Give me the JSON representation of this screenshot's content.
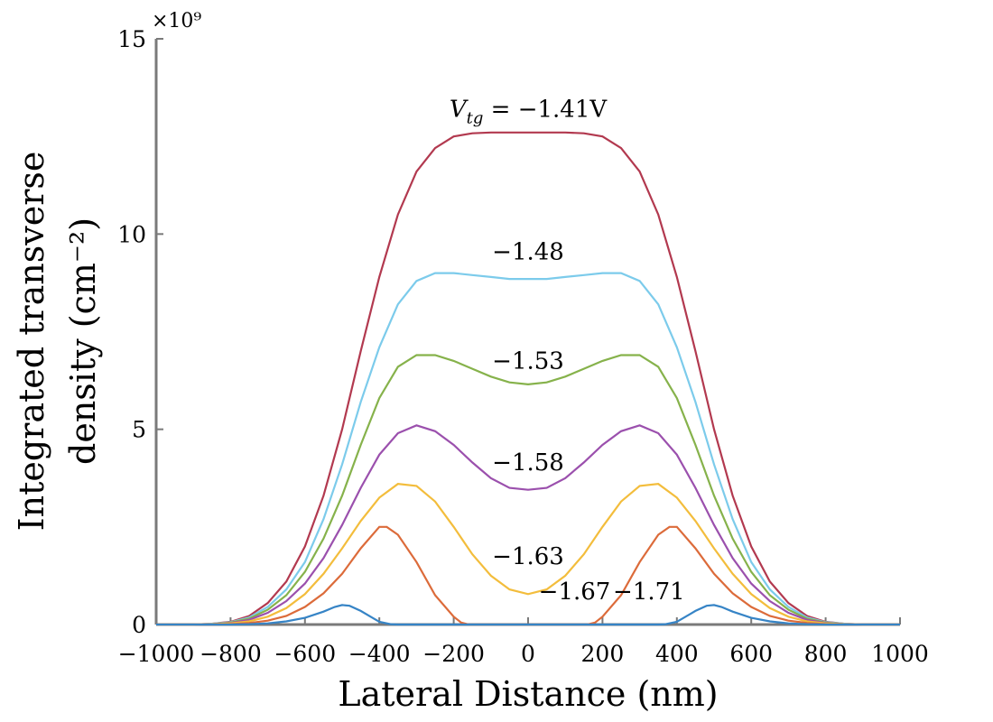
{
  "chart_data": {
    "type": "line",
    "title": "",
    "xlabel": "Lateral Distance (nm)",
    "ylabel_line1": "Integrated transverse",
    "ylabel_line2": "density (cm⁻²)",
    "y_multiplier": "×10⁹",
    "xlim": [
      -1000,
      1000
    ],
    "ylim": [
      0,
      15
    ],
    "x_ticks": [
      -1000,
      -800,
      -600,
      -400,
      -200,
      0,
      200,
      400,
      600,
      800,
      1000
    ],
    "x_tick_labels": [
      "−1000",
      "−800",
      "−600",
      "−400",
      "−200",
      "0",
      "200",
      "400",
      "600",
      "800",
      "1000"
    ],
    "y_ticks": [
      0,
      5,
      10,
      15
    ],
    "y_tick_labels": [
      "0",
      "5",
      "10",
      "15"
    ],
    "grid": false,
    "legend": "none",
    "series": [
      {
        "name": "V_tg = −1.41V",
        "color": "#b2394f",
        "points": [
          [
            -1000,
            0
          ],
          [
            -900,
            0
          ],
          [
            -850,
            0.02
          ],
          [
            -800,
            0.07
          ],
          [
            -750,
            0.22
          ],
          [
            -700,
            0.55
          ],
          [
            -650,
            1.1
          ],
          [
            -600,
            2.0
          ],
          [
            -550,
            3.3
          ],
          [
            -500,
            5.0
          ],
          [
            -450,
            7.0
          ],
          [
            -400,
            8.9
          ],
          [
            -350,
            10.5
          ],
          [
            -300,
            11.6
          ],
          [
            -250,
            12.2
          ],
          [
            -200,
            12.5
          ],
          [
            -150,
            12.58
          ],
          [
            -100,
            12.6
          ],
          [
            0,
            12.6
          ],
          [
            100,
            12.6
          ],
          [
            150,
            12.58
          ],
          [
            200,
            12.5
          ],
          [
            250,
            12.2
          ],
          [
            300,
            11.6
          ],
          [
            350,
            10.5
          ],
          [
            400,
            8.9
          ],
          [
            450,
            7.0
          ],
          [
            500,
            5.0
          ],
          [
            550,
            3.3
          ],
          [
            600,
            2.0
          ],
          [
            650,
            1.1
          ],
          [
            700,
            0.55
          ],
          [
            750,
            0.22
          ],
          [
            800,
            0.07
          ],
          [
            850,
            0.02
          ],
          [
            900,
            0
          ],
          [
            1000,
            0
          ]
        ]
      },
      {
        "name": "−1.48",
        "color": "#7ccbeb",
        "points": [
          [
            -1000,
            0
          ],
          [
            -900,
            0
          ],
          [
            -850,
            0.02
          ],
          [
            -800,
            0.06
          ],
          [
            -750,
            0.18
          ],
          [
            -700,
            0.45
          ],
          [
            -650,
            0.9
          ],
          [
            -600,
            1.6
          ],
          [
            -550,
            2.7
          ],
          [
            -500,
            4.1
          ],
          [
            -450,
            5.7
          ],
          [
            -400,
            7.1
          ],
          [
            -350,
            8.2
          ],
          [
            -300,
            8.8
          ],
          [
            -250,
            9.0
          ],
          [
            -200,
            9.0
          ],
          [
            -150,
            8.95
          ],
          [
            -100,
            8.9
          ],
          [
            -50,
            8.85
          ],
          [
            0,
            8.85
          ],
          [
            50,
            8.85
          ],
          [
            100,
            8.9
          ],
          [
            150,
            8.95
          ],
          [
            200,
            9.0
          ],
          [
            250,
            9.0
          ],
          [
            300,
            8.8
          ],
          [
            350,
            8.2
          ],
          [
            400,
            7.1
          ],
          [
            450,
            5.7
          ],
          [
            500,
            4.1
          ],
          [
            550,
            2.7
          ],
          [
            600,
            1.6
          ],
          [
            650,
            0.9
          ],
          [
            700,
            0.45
          ],
          [
            750,
            0.18
          ],
          [
            800,
            0.06
          ],
          [
            850,
            0.02
          ],
          [
            900,
            0
          ],
          [
            1000,
            0
          ]
        ]
      },
      {
        "name": "−1.53",
        "color": "#86b24b",
        "points": [
          [
            -1000,
            0
          ],
          [
            -900,
            0
          ],
          [
            -850,
            0.01
          ],
          [
            -800,
            0.05
          ],
          [
            -750,
            0.15
          ],
          [
            -700,
            0.38
          ],
          [
            -650,
            0.75
          ],
          [
            -600,
            1.35
          ],
          [
            -550,
            2.2
          ],
          [
            -500,
            3.3
          ],
          [
            -450,
            4.6
          ],
          [
            -400,
            5.8
          ],
          [
            -350,
            6.6
          ],
          [
            -300,
            6.9
          ],
          [
            -250,
            6.9
          ],
          [
            -200,
            6.75
          ],
          [
            -150,
            6.55
          ],
          [
            -100,
            6.35
          ],
          [
            -50,
            6.2
          ],
          [
            0,
            6.15
          ],
          [
            50,
            6.2
          ],
          [
            100,
            6.35
          ],
          [
            150,
            6.55
          ],
          [
            200,
            6.75
          ],
          [
            250,
            6.9
          ],
          [
            300,
            6.9
          ],
          [
            350,
            6.6
          ],
          [
            400,
            5.8
          ],
          [
            450,
            4.6
          ],
          [
            500,
            3.3
          ],
          [
            550,
            2.2
          ],
          [
            600,
            1.35
          ],
          [
            650,
            0.75
          ],
          [
            700,
            0.38
          ],
          [
            750,
            0.15
          ],
          [
            800,
            0.05
          ],
          [
            850,
            0.01
          ],
          [
            900,
            0
          ],
          [
            1000,
            0
          ]
        ]
      },
      {
        "name": "−1.58",
        "color": "#9b50ad",
        "points": [
          [
            -1000,
            0
          ],
          [
            -900,
            0
          ],
          [
            -850,
            0.01
          ],
          [
            -800,
            0.04
          ],
          [
            -750,
            0.12
          ],
          [
            -700,
            0.3
          ],
          [
            -650,
            0.6
          ],
          [
            -600,
            1.05
          ],
          [
            -550,
            1.7
          ],
          [
            -500,
            2.55
          ],
          [
            -450,
            3.5
          ],
          [
            -400,
            4.35
          ],
          [
            -350,
            4.9
          ],
          [
            -300,
            5.1
          ],
          [
            -250,
            4.95
          ],
          [
            -200,
            4.6
          ],
          [
            -150,
            4.15
          ],
          [
            -100,
            3.75
          ],
          [
            -50,
            3.5
          ],
          [
            0,
            3.45
          ],
          [
            50,
            3.5
          ],
          [
            100,
            3.75
          ],
          [
            150,
            4.15
          ],
          [
            200,
            4.6
          ],
          [
            250,
            4.95
          ],
          [
            300,
            5.1
          ],
          [
            350,
            4.9
          ],
          [
            400,
            4.35
          ],
          [
            450,
            3.5
          ],
          [
            500,
            2.55
          ],
          [
            550,
            1.7
          ],
          [
            600,
            1.05
          ],
          [
            650,
            0.6
          ],
          [
            700,
            0.3
          ],
          [
            750,
            0.12
          ],
          [
            800,
            0.04
          ],
          [
            850,
            0.01
          ],
          [
            900,
            0
          ],
          [
            1000,
            0
          ]
        ]
      },
      {
        "name": "−1.63",
        "color": "#f3bd3c",
        "points": [
          [
            -1000,
            0
          ],
          [
            -900,
            0
          ],
          [
            -850,
            0.01
          ],
          [
            -800,
            0.03
          ],
          [
            -750,
            0.08
          ],
          [
            -700,
            0.2
          ],
          [
            -650,
            0.42
          ],
          [
            -600,
            0.78
          ],
          [
            -550,
            1.3
          ],
          [
            -500,
            1.95
          ],
          [
            -450,
            2.65
          ],
          [
            -400,
            3.25
          ],
          [
            -350,
            3.6
          ],
          [
            -300,
            3.55
          ],
          [
            -250,
            3.15
          ],
          [
            -200,
            2.5
          ],
          [
            -150,
            1.8
          ],
          [
            -100,
            1.25
          ],
          [
            -50,
            0.9
          ],
          [
            0,
            0.78
          ],
          [
            50,
            0.9
          ],
          [
            100,
            1.25
          ],
          [
            150,
            1.8
          ],
          [
            200,
            2.5
          ],
          [
            250,
            3.15
          ],
          [
            300,
            3.55
          ],
          [
            350,
            3.6
          ],
          [
            400,
            3.25
          ],
          [
            450,
            2.65
          ],
          [
            500,
            1.95
          ],
          [
            550,
            1.3
          ],
          [
            600,
            0.78
          ],
          [
            650,
            0.42
          ],
          [
            700,
            0.2
          ],
          [
            750,
            0.08
          ],
          [
            800,
            0.03
          ],
          [
            850,
            0.01
          ],
          [
            900,
            0
          ],
          [
            1000,
            0
          ]
        ]
      },
      {
        "name": "−1.67",
        "color": "#dc6b3a",
        "points": [
          [
            -1000,
            0
          ],
          [
            -850,
            0
          ],
          [
            -800,
            0.01
          ],
          [
            -750,
            0.04
          ],
          [
            -700,
            0.1
          ],
          [
            -650,
            0.22
          ],
          [
            -600,
            0.45
          ],
          [
            -550,
            0.8
          ],
          [
            -500,
            1.3
          ],
          [
            -450,
            1.95
          ],
          [
            -400,
            2.5
          ],
          [
            -380,
            2.5
          ],
          [
            -350,
            2.3
          ],
          [
            -300,
            1.6
          ],
          [
            -250,
            0.75
          ],
          [
            -200,
            0.2
          ],
          [
            -180,
            0.05
          ],
          [
            -160,
            0
          ],
          [
            160,
            0
          ],
          [
            180,
            0.05
          ],
          [
            200,
            0.2
          ],
          [
            250,
            0.75
          ],
          [
            300,
            1.6
          ],
          [
            350,
            2.3
          ],
          [
            380,
            2.5
          ],
          [
            400,
            2.5
          ],
          [
            450,
            1.95
          ],
          [
            500,
            1.3
          ],
          [
            550,
            0.8
          ],
          [
            600,
            0.45
          ],
          [
            650,
            0.22
          ],
          [
            700,
            0.1
          ],
          [
            750,
            0.04
          ],
          [
            800,
            0.01
          ],
          [
            850,
            0
          ],
          [
            1000,
            0
          ]
        ]
      },
      {
        "name": "−1.71",
        "color": "#3684c6",
        "points": [
          [
            -1000,
            0
          ],
          [
            -800,
            0
          ],
          [
            -750,
            0.01
          ],
          [
            -700,
            0.03
          ],
          [
            -650,
            0.08
          ],
          [
            -600,
            0.17
          ],
          [
            -550,
            0.33
          ],
          [
            -520,
            0.45
          ],
          [
            -500,
            0.5
          ],
          [
            -480,
            0.48
          ],
          [
            -450,
            0.35
          ],
          [
            -420,
            0.18
          ],
          [
            -400,
            0.07
          ],
          [
            -370,
            0.01
          ],
          [
            -350,
            0
          ],
          [
            350,
            0
          ],
          [
            370,
            0.01
          ],
          [
            400,
            0.07
          ],
          [
            420,
            0.18
          ],
          [
            450,
            0.35
          ],
          [
            480,
            0.48
          ],
          [
            500,
            0.5
          ],
          [
            520,
            0.45
          ],
          [
            550,
            0.33
          ],
          [
            600,
            0.17
          ],
          [
            650,
            0.08
          ],
          [
            700,
            0.03
          ],
          [
            750,
            0.01
          ],
          [
            800,
            0
          ],
          [
            1000,
            0
          ]
        ]
      }
    ],
    "annotations": [
      {
        "text": "V_tg = −1.41V",
        "x": 0,
        "y": 13.0,
        "kind": "vtg"
      },
      {
        "text": "−1.48",
        "x": 0,
        "y": 9.35,
        "kind": "plain"
      },
      {
        "text": "−1.53",
        "x": 0,
        "y": 6.55,
        "kind": "plain"
      },
      {
        "text": "−1.63",
        "x": 0,
        "y": 1.55,
        "kind": "plain"
      },
      {
        "text": "−1.58",
        "x": 0,
        "y": 3.95,
        "kind": "plain"
      },
      {
        "text": "−1.67",
        "x": 125,
        "y": 0.65,
        "kind": "plain"
      },
      {
        "text": "−1.71",
        "x": 325,
        "y": 0.65,
        "kind": "plain"
      }
    ]
  }
}
